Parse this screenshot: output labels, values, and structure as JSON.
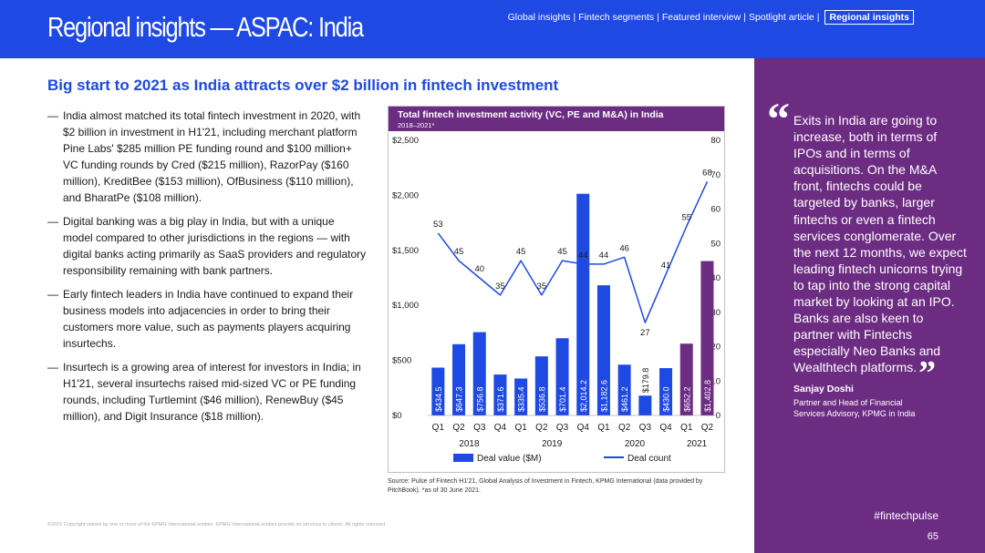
{
  "header": {
    "title": "Regional insights — ASPAC: India",
    "nav": [
      {
        "label": "Global insights",
        "active": false
      },
      {
        "label": "Fintech segments",
        "active": false
      },
      {
        "label": "Featured interview",
        "active": false
      },
      {
        "label": "Spotlight article",
        "active": false
      },
      {
        "label": "Regional insights",
        "active": true
      }
    ],
    "nav_separator": "|"
  },
  "subtitle": "Big start to 2021 as India attracts over $2 billion in fintech investment",
  "bullets": [
    "India almost matched its total fintech investment in 2020, with $2 billion in investment in H1'21, including merchant platform Pine Labs' $285 million PE funding round and $100 million+ VC funding rounds by Cred ($215 million), RazorPay ($160 million), KreditBee ($153 million), OfBusiness ($110 million), and BharatPe ($108 million).",
    "Digital banking was a big play in India, but with a unique model compared to other jurisdictions in the regions — with digital banks acting primarily as SaaS providers and regulatory responsibility remaining with bank partners.",
    "Early fintech leaders in India have continued to expand their business models into adjacencies in order to bring their customers more value, such as payments players acquiring insurtechs.",
    "Insurtech is a growing area of interest for investors in India; in H1'21, several insurtechs raised mid-sized VC or PE funding rounds, including Turtlemint ($46 million), RenewBuy ($45 million), and Digit Insurance ($18 million)."
  ],
  "bullet_dash": "—",
  "chart_data": {
    "type": "bar",
    "title": "Total fintech investment activity (VC, PE and M&A) in India",
    "subtitle": "2018–2021*",
    "categories": [
      "Q1",
      "Q2",
      "Q3",
      "Q4",
      "Q1",
      "Q2",
      "Q3",
      "Q4",
      "Q1",
      "Q2",
      "Q3",
      "Q4",
      "Q1",
      "Q2"
    ],
    "years": [
      {
        "label": "2018",
        "start": 0,
        "end": 3
      },
      {
        "label": "2019",
        "start": 4,
        "end": 7
      },
      {
        "label": "2020",
        "start": 8,
        "end": 11
      },
      {
        "label": "2021",
        "start": 12,
        "end": 13
      }
    ],
    "series": [
      {
        "name": "Deal value ($M)",
        "type": "bar",
        "axis": "left",
        "values": [
          434.5,
          647.3,
          756.8,
          371.6,
          335.4,
          536.8,
          701.4,
          2014.2,
          1182.6,
          461.2,
          179.8,
          430.0,
          652.2,
          1402.8
        ],
        "labels": [
          "$434.5",
          "$647.3",
          "$756.8",
          "$371.6",
          "$335.4",
          "$536.8",
          "$701.4",
          "$2,014.2",
          "$1,182.6",
          "$461.2",
          "$179.8",
          "$430.0",
          "$652.2",
          "$1,402.8"
        ]
      },
      {
        "name": "Deal count",
        "type": "line",
        "axis": "right",
        "values": [
          53,
          45,
          40,
          35,
          45,
          35,
          45,
          44,
          44,
          46,
          27,
          41,
          55,
          68
        ]
      }
    ],
    "bar_colors": [
      "#1e49e2",
      "#1e49e2",
      "#1e49e2",
      "#1e49e2",
      "#1e49e2",
      "#1e49e2",
      "#1e49e2",
      "#1e49e2",
      "#1e49e2",
      "#1e49e2",
      "#1e49e2",
      "#1e49e2",
      "#6c2c82",
      "#6c2c82"
    ],
    "line_color": "#1e49e2",
    "ylim_left": [
      0,
      2500
    ],
    "ylim_right": [
      0,
      80
    ],
    "yticks_left": [
      {
        "value": 0,
        "label": "$0"
      },
      {
        "value": 500,
        "label": "$500"
      },
      {
        "value": 1000,
        "label": "$1,000"
      },
      {
        "value": 1500,
        "label": "$1,500"
      },
      {
        "value": 2000,
        "label": "$2,000"
      },
      {
        "value": 2500,
        "label": "$2,500"
      }
    ],
    "yticks_right": [
      0,
      10,
      20,
      30,
      40,
      50,
      60,
      70,
      80
    ],
    "legend": [
      {
        "label": "Deal value ($M)",
        "kind": "bar"
      },
      {
        "label": "Deal count",
        "kind": "line"
      }
    ],
    "legend_position": "bottom",
    "grid": false
  },
  "source": "Source: Pulse of Fintech H1'21, Global Analysis of Investment in Fintech, KPMG International (data provided by PitchBook). *as of 30 June 2021.",
  "footer_copy": "©2021 Copyright owned by one or more of the KPMG International entities. KPMG International entities provide no services to clients. All rights reserved.",
  "quote": {
    "open_mark": "“",
    "close_mark": "”",
    "text": "Exits in India are going to increase, both in terms of IPOs and in terms of acquisitions. On the M&A front, fintechs could be targeted by banks, larger fintechs or even a fintech services conglomerate. Over the next 12 months, we expect leading fintech unicorns trying to tap into the strong capital market by looking at an IPO. Banks are also keen to partner with Fintechs especially Neo Banks and Wealthtech platforms.",
    "speaker_name": "Sanjay Doshi",
    "speaker_role": "Partner and Head of Financial Services Advisory, KPMG in India"
  },
  "hashtag": "#fintechpulse",
  "page_number": "65",
  "colors": {
    "header_blue": "#1e49e2",
    "panel_purple": "#6c2c82"
  }
}
